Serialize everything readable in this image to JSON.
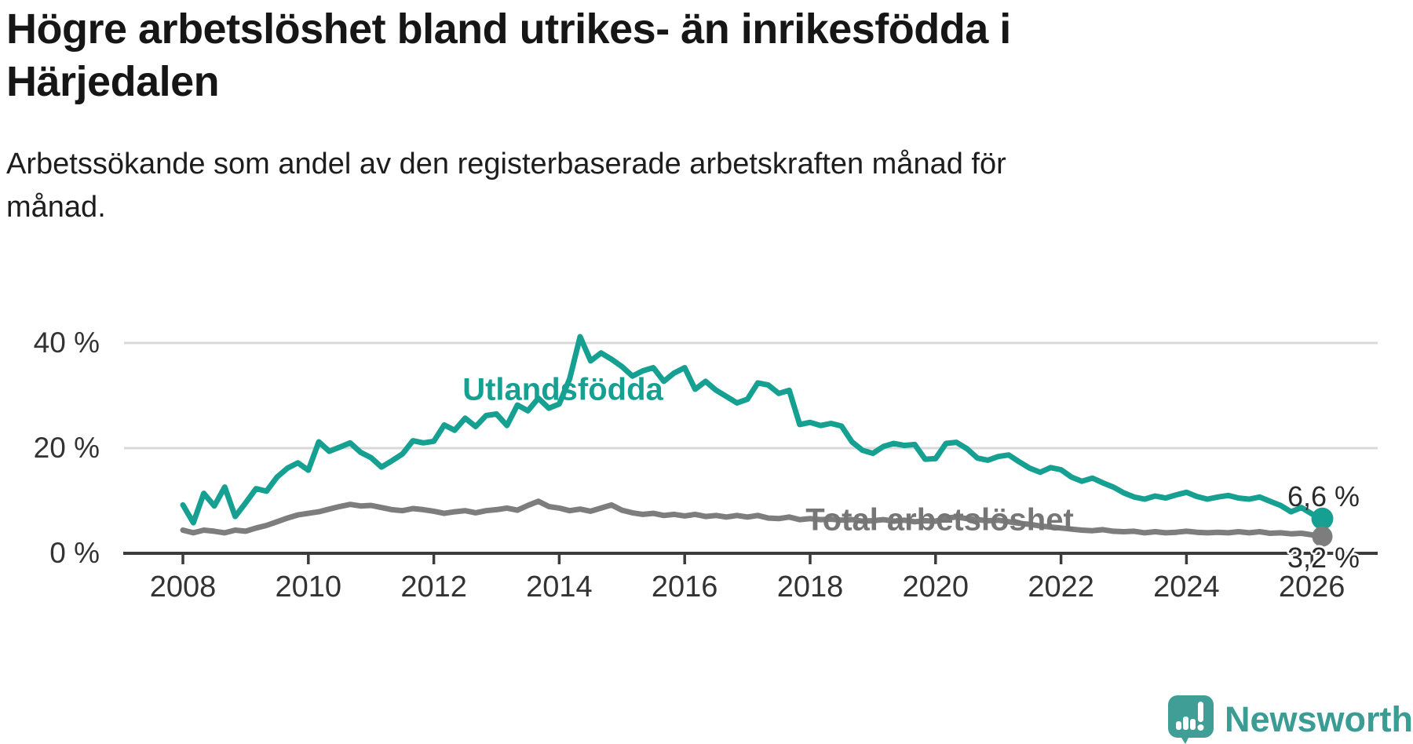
{
  "header": {
    "title": "Högre arbetslöshet bland utrikes- än inrikesfödda i\nHärjedalen",
    "subtitle": "Arbetssökande som andel av den registerbaserade arbetskraften månad för\nmånad."
  },
  "chart_data": {
    "type": "line",
    "title": "Högre arbetslöshet bland utrikes- än inrikesfödda i Härjedalen",
    "xlabel": "",
    "ylabel": "Arbetssökande som andel av den registerbaserade arbetskraften (%)",
    "x_start_year": 2008,
    "x_step_years": 0.1666667,
    "x_ticks": [
      2008,
      2010,
      2012,
      2014,
      2016,
      2018,
      2020,
      2022,
      2024,
      2026
    ],
    "y_ticks": [
      0,
      20,
      40
    ],
    "y_suffix": " %",
    "ylim": [
      0,
      44
    ],
    "grid_y": [
      20,
      40
    ],
    "grid_on": true,
    "legend_position": "inline-labels",
    "series": [
      {
        "name": "Utlandsfödda",
        "color": "#16a091",
        "end_value": 6.6,
        "end_label": "6,6 %",
        "values": [
          9.2,
          5.8,
          11.4,
          9.0,
          12.6,
          7.0,
          9.6,
          12.3,
          11.8,
          14.5,
          16.2,
          17.2,
          15.8,
          21.2,
          19.4,
          20.2,
          21.0,
          19.2,
          18.2,
          16.4,
          17.6,
          18.9,
          21.4,
          21.0,
          21.3,
          24.4,
          23.4,
          25.7,
          24.1,
          26.2,
          26.5,
          24.3,
          28.2,
          27.1,
          29.5,
          27.6,
          28.4,
          33.2,
          41.2,
          36.6,
          38.1,
          36.9,
          35.5,
          33.7,
          34.7,
          35.3,
          32.7,
          34.3,
          35.3,
          31.2,
          32.7,
          31.0,
          29.8,
          28.6,
          29.3,
          32.4,
          32.0,
          30.4,
          31.0,
          24.5,
          24.9,
          24.3,
          24.7,
          24.2,
          21.2,
          19.6,
          19.0,
          20.3,
          20.9,
          20.5,
          20.7,
          17.9,
          18.0,
          20.9,
          21.1,
          19.9,
          18.1,
          17.7,
          18.4,
          18.7,
          17.4,
          16.2,
          15.4,
          16.3,
          15.9,
          14.5,
          13.7,
          14.3,
          13.4,
          12.6,
          11.5,
          10.7,
          10.3,
          10.9,
          10.5,
          11.1,
          11.6,
          10.8,
          10.3,
          10.7,
          11.0,
          10.5,
          10.3,
          10.7,
          9.9,
          9.1,
          7.9,
          8.7,
          7.5,
          6.6
        ]
      },
      {
        "name": "Total arbetslöshet",
        "color": "#7d7d7d",
        "end_value": 3.2,
        "end_label": "3,2 %",
        "values": [
          4.4,
          3.9,
          4.4,
          4.2,
          3.9,
          4.4,
          4.2,
          4.8,
          5.3,
          6.0,
          6.7,
          7.3,
          7.6,
          7.9,
          8.4,
          8.9,
          9.3,
          9.0,
          9.1,
          8.7,
          8.3,
          8.1,
          8.5,
          8.3,
          8.0,
          7.6,
          7.9,
          8.1,
          7.7,
          8.1,
          8.3,
          8.6,
          8.2,
          9.1,
          9.9,
          8.9,
          8.6,
          8.1,
          8.4,
          8.0,
          8.6,
          9.2,
          8.2,
          7.7,
          7.4,
          7.6,
          7.2,
          7.4,
          7.1,
          7.4,
          7.0,
          7.2,
          6.9,
          7.2,
          6.9,
          7.2,
          6.7,
          6.6,
          6.9,
          6.4,
          6.6,
          6.4,
          6.5,
          6.3,
          6.4,
          6.1,
          6.2,
          6.4,
          6.1,
          6.3,
          6.0,
          6.2,
          6.1,
          6.7,
          6.9,
          6.6,
          6.4,
          6.2,
          6.3,
          6.0,
          5.7,
          5.5,
          5.2,
          5.0,
          4.8,
          4.6,
          4.4,
          4.3,
          4.5,
          4.2,
          4.1,
          4.2,
          3.9,
          4.1,
          3.9,
          4.0,
          4.2,
          4.0,
          3.9,
          4.0,
          3.9,
          4.1,
          3.9,
          4.1,
          3.8,
          3.9,
          3.7,
          3.8,
          3.5,
          3.2
        ]
      }
    ]
  },
  "branding": {
    "name": "Newsworthy",
    "logo_icon": "bar-chart-speech-bubble-icon",
    "color": "#3b9c94"
  }
}
